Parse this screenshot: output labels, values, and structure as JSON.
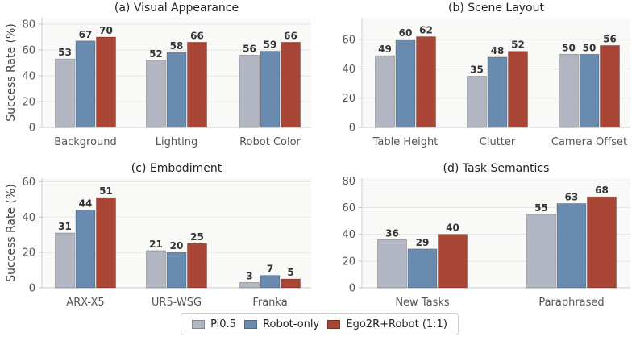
{
  "legend": {
    "items": [
      {
        "label": "Pi0.5",
        "color": "#b1b6c2"
      },
      {
        "label": "Robot-only",
        "color": "#6a8bb0"
      },
      {
        "label": "Ego2R+Robot (1:1)",
        "color": "#a84535"
      }
    ]
  },
  "chart_data": [
    {
      "type": "bar",
      "title": "(a) Visual Appearance",
      "ylabel": "Success Rate (%)",
      "categories": [
        "Background",
        "Lighting",
        "Robot Color"
      ],
      "series": [
        {
          "name": "Pi0.5",
          "values": [
            53,
            52,
            56
          ]
        },
        {
          "name": "Robot-only",
          "values": [
            67,
            58,
            59
          ]
        },
        {
          "name": "Ego2R+Robot (1:1)",
          "values": [
            70,
            66,
            66
          ]
        }
      ],
      "ylim": [
        0,
        85
      ],
      "yticks": [
        0,
        20,
        40,
        60,
        80
      ],
      "grid": true
    },
    {
      "type": "bar",
      "title": "(b) Scene Layout",
      "ylabel": "",
      "categories": [
        "Table Height",
        "Clutter",
        "Camera Offset"
      ],
      "series": [
        {
          "name": "Pi0.5",
          "values": [
            49,
            35,
            50
          ]
        },
        {
          "name": "Robot-only",
          "values": [
            60,
            48,
            50
          ]
        },
        {
          "name": "Ego2R+Robot (1:1)",
          "values": [
            62,
            52,
            56
          ]
        }
      ],
      "ylim": [
        0,
        75
      ],
      "yticks": [
        0,
        20,
        40,
        60
      ],
      "grid": true
    },
    {
      "type": "bar",
      "title": "(c) Embodiment",
      "ylabel": "Success Rate (%)",
      "categories": [
        "ARX-X5",
        "UR5-WSG",
        "Franka"
      ],
      "series": [
        {
          "name": "Pi0.5",
          "values": [
            31,
            21,
            3
          ]
        },
        {
          "name": "Robot-only",
          "values": [
            44,
            20,
            7
          ]
        },
        {
          "name": "Ego2R+Robot (1:1)",
          "values": [
            51,
            25,
            5
          ]
        }
      ],
      "ylim": [
        0,
        62
      ],
      "yticks": [
        0,
        20,
        40,
        60
      ],
      "grid": true
    },
    {
      "type": "bar",
      "title": "(d) Task Semantics",
      "ylabel": "",
      "categories": [
        "New Tasks",
        "Paraphrased"
      ],
      "series": [
        {
          "name": "Pi0.5",
          "values": [
            36,
            55
          ]
        },
        {
          "name": "Robot-only",
          "values": [
            29,
            63
          ]
        },
        {
          "name": "Ego2R+Robot (1:1)",
          "values": [
            40,
            68
          ]
        }
      ],
      "ylim": [
        0,
        82
      ],
      "yticks": [
        0,
        20,
        40,
        60,
        80
      ],
      "grid": true
    }
  ]
}
